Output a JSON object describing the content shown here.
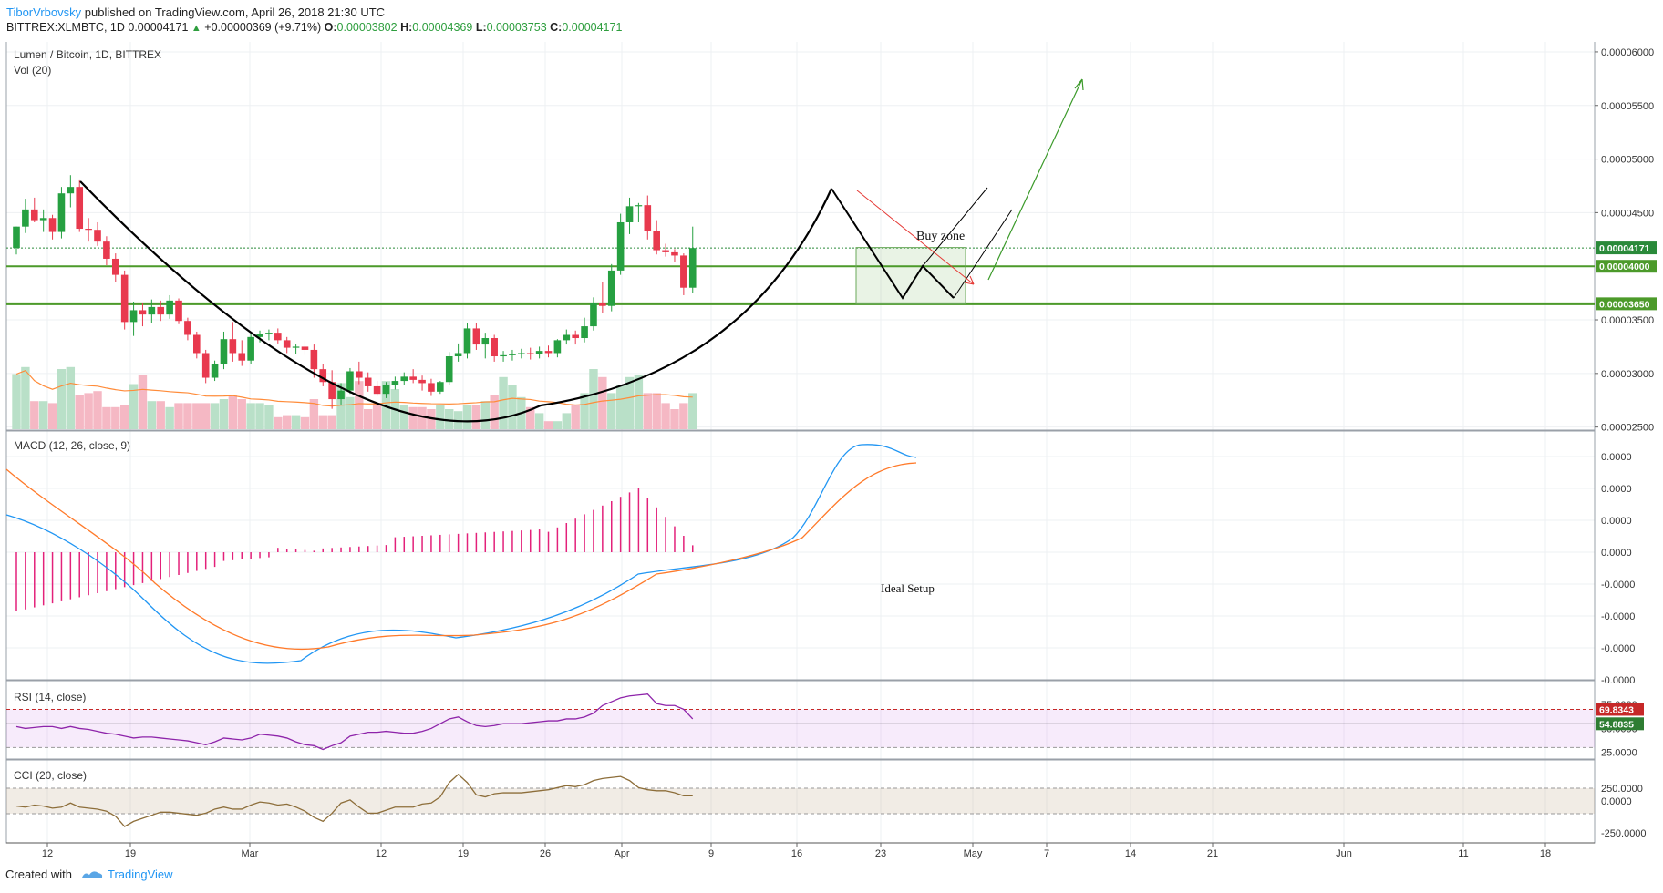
{
  "header": {
    "author": "TiborVrbovsky",
    "published": "published on TradingView.com, April 26, 2018 21:30 UTC",
    "symbol": "BITTREX:XLMBTC, 1D",
    "last": "0.00004171",
    "change": "+0.00000369 (+9.71%)",
    "open_label": "O:",
    "open": "0.00003802",
    "high_label": "H:",
    "high": "0.00004369",
    "low_label": "L:",
    "low": "0.00003753",
    "close_label": "C:",
    "close": "0.00004171"
  },
  "footer": {
    "created_with": "Created with",
    "brand": "TradingView"
  },
  "colors": {
    "up": "#26a041",
    "down": "#e8394e",
    "up_vol": "#b9e0c8",
    "down_vol": "#f5b8c4",
    "ma": "#ff8c3a",
    "macd": "#2196f3",
    "signal": "#ff7a2a",
    "hist": "#e3217a",
    "rsi": "#8e24aa",
    "cci": "#8d6e3a",
    "pattern": "#000000",
    "target": "#3b9a2a",
    "level": "#4c9a2a",
    "downtrend": "#e53935"
  },
  "chart_data": {
    "type": "candlestick",
    "panes": {
      "price": {
        "title": "Lumen / Bitcoin, 1D, BITTREX",
        "volume_label": "Vol (20)",
        "ylim": [
          2.48e-05,
          6.11e-05
        ],
        "y_ticks": [
          "0.00006000",
          "0.00005500",
          "0.00005000",
          "0.00004500",
          "0.00003500",
          "0.00003000",
          "0.00002500"
        ],
        "ohlc": [
          [
            4.17e-05,
            4.37e-05,
            4.11e-05,
            4.37e-05
          ],
          [
            4.37e-05,
            4.63e-05,
            4.31e-05,
            4.53e-05
          ],
          [
            4.53e-05,
            4.64e-05,
            4.41e-05,
            4.43e-05
          ],
          [
            4.43e-05,
            4.53e-05,
            4.32e-05,
            4.45e-05
          ],
          [
            4.45e-05,
            4.48e-05,
            4.25e-05,
            4.32e-05
          ],
          [
            4.32e-05,
            4.74e-05,
            4.26e-05,
            4.68e-05
          ],
          [
            4.68e-05,
            4.85e-05,
            4.55e-05,
            4.74e-05
          ],
          [
            4.74e-05,
            4.81e-05,
            4.32e-05,
            4.35e-05
          ],
          [
            4.35e-05,
            4.45e-05,
            4.23e-05,
            4.34e-05
          ],
          [
            4.34e-05,
            4.41e-05,
            4.19e-05,
            4.23e-05
          ],
          [
            4.23e-05,
            4.28e-05,
            4.01e-05,
            4.07e-05
          ],
          [
            4.07e-05,
            4.12e-05,
            3.85e-05,
            3.92e-05
          ],
          [
            3.92e-05,
            3.96e-05,
            3.41e-05,
            3.48e-05
          ],
          [
            3.48e-05,
            3.67e-05,
            3.35e-05,
            3.59e-05
          ],
          [
            3.59e-05,
            3.66e-05,
            3.44e-05,
            3.55e-05
          ],
          [
            3.55e-05,
            3.69e-05,
            3.47e-05,
            3.62e-05
          ],
          [
            3.62e-05,
            3.68e-05,
            3.49e-05,
            3.55e-05
          ],
          [
            3.55e-05,
            3.73e-05,
            3.51e-05,
            3.68e-05
          ],
          [
            3.68e-05,
            3.7e-05,
            3.46e-05,
            3.49e-05
          ],
          [
            3.49e-05,
            3.52e-05,
            3.31e-05,
            3.36e-05
          ],
          [
            3.36e-05,
            3.39e-05,
            3.14e-05,
            3.19e-05
          ],
          [
            3.19e-05,
            3.22e-05,
            2.91e-05,
            2.96e-05
          ],
          [
            2.96e-05,
            3.12e-05,
            2.93e-05,
            3.09e-05
          ],
          [
            3.09e-05,
            3.39e-05,
            3.04e-05,
            3.32e-05
          ],
          [
            3.32e-05,
            3.48e-05,
            3.11e-05,
            3.19e-05
          ],
          [
            3.19e-05,
            3.31e-05,
            3.07e-05,
            3.12e-05
          ],
          [
            3.12e-05,
            3.37e-05,
            3.09e-05,
            3.34e-05
          ],
          [
            3.34e-05,
            3.4e-05,
            3.29e-05,
            3.37e-05
          ],
          [
            3.37e-05,
            3.41e-05,
            3.31e-05,
            3.38e-05
          ],
          [
            3.38e-05,
            3.42e-05,
            3.28e-05,
            3.31e-05
          ],
          [
            3.31e-05,
            3.34e-05,
            3.19e-05,
            3.24e-05
          ],
          [
            3.24e-05,
            3.27e-05,
            3.18e-05,
            3.25e-05
          ],
          [
            3.25e-05,
            3.31e-05,
            3.17e-05,
            3.22e-05
          ],
          [
            3.22e-05,
            3.27e-05,
            2.96e-05,
            3.04e-05
          ],
          [
            3.04e-05,
            3.09e-05,
            2.88e-05,
            2.92e-05
          ],
          [
            2.92e-05,
            3.03e-05,
            2.67e-05,
            2.76e-05
          ],
          [
            2.76e-05,
            2.91e-05,
            2.71e-05,
            2.84e-05
          ],
          [
            2.84e-05,
            3.05e-05,
            2.81e-05,
            3.02e-05
          ],
          [
            3.02e-05,
            3.11e-05,
            2.9e-05,
            2.96e-05
          ],
          [
            2.96e-05,
            3.01e-05,
            2.83e-05,
            2.88e-05
          ],
          [
            2.88e-05,
            2.93e-05,
            2.79e-05,
            2.81e-05
          ],
          [
            2.81e-05,
            2.92e-05,
            2.77e-05,
            2.89e-05
          ],
          [
            2.89e-05,
            2.97e-05,
            2.85e-05,
            2.93e-05
          ],
          [
            2.93e-05,
            3.01e-05,
            2.89e-05,
            2.97e-05
          ],
          [
            2.97e-05,
            3.04e-05,
            2.91e-05,
            2.94e-05
          ],
          [
            2.94e-05,
            2.98e-05,
            2.84e-05,
            2.91e-05
          ],
          [
            2.91e-05,
            2.95e-05,
            2.79e-05,
            2.83e-05
          ],
          [
            2.83e-05,
            2.93e-05,
            2.81e-05,
            2.92e-05
          ],
          [
            2.92e-05,
            3.2e-05,
            2.89e-05,
            3.16e-05
          ],
          [
            3.16e-05,
            3.28e-05,
            3.11e-05,
            3.19e-05
          ],
          [
            3.19e-05,
            3.47e-05,
            3.14e-05,
            3.42e-05
          ],
          [
            3.42e-05,
            3.47e-05,
            3.22e-05,
            3.27e-05
          ],
          [
            3.27e-05,
            3.38e-05,
            3.14e-05,
            3.33e-05
          ],
          [
            3.33e-05,
            3.36e-05,
            3.11e-05,
            3.16e-05
          ],
          [
            3.16e-05,
            3.21e-05,
            3.11e-05,
            3.17e-05
          ],
          [
            3.17e-05,
            3.22e-05,
            3.12e-05,
            3.18e-05
          ],
          [
            3.18e-05,
            3.23e-05,
            3.14e-05,
            3.19e-05
          ],
          [
            3.19e-05,
            3.24e-05,
            3.13e-05,
            3.18e-05
          ],
          [
            3.18e-05,
            3.25e-05,
            3.14e-05,
            3.21e-05
          ],
          [
            3.21e-05,
            3.26e-05,
            3.15e-05,
            3.19e-05
          ],
          [
            3.19e-05,
            3.32e-05,
            3.15e-05,
            3.31e-05
          ],
          [
            3.31e-05,
            3.41e-05,
            3.27e-05,
            3.36e-05
          ],
          [
            3.36e-05,
            3.4e-05,
            3.27e-05,
            3.33e-05
          ],
          [
            3.33e-05,
            3.52e-05,
            3.29e-05,
            3.44e-05
          ],
          [
            3.44e-05,
            3.71e-05,
            3.4e-05,
            3.66e-05
          ],
          [
            3.66e-05,
            3.85e-05,
            3.56e-05,
            3.63e-05
          ],
          [
            3.63e-05,
            4.02e-05,
            3.58e-05,
            3.96e-05
          ],
          [
            3.96e-05,
            4.49e-05,
            3.92e-05,
            4.41e-05
          ],
          [
            4.41e-05,
            4.64e-05,
            4.3e-05,
            4.56e-05
          ],
          [
            4.56e-05,
            4.59e-05,
            4.41e-05,
            4.57e-05
          ],
          [
            4.57e-05,
            4.66e-05,
            4.25e-05,
            4.33e-05
          ],
          [
            4.33e-05,
            4.43e-05,
            4.11e-05,
            4.15e-05
          ],
          [
            4.15e-05,
            4.21e-05,
            4.09e-05,
            4.13e-05
          ],
          [
            4.13e-05,
            4.16e-05,
            4.04e-05,
            4.1e-05
          ],
          [
            4.1e-05,
            4.12e-05,
            3.73e-05,
            3.8e-05
          ],
          [
            3.8e-05,
            4.37e-05,
            3.75e-05,
            4.17e-05
          ]
        ],
        "volume": [
          0.55,
          0.62,
          0.28,
          0.28,
          0.26,
          0.6,
          0.62,
          0.34,
          0.36,
          0.38,
          0.22,
          0.22,
          0.24,
          0.45,
          0.54,
          0.28,
          0.28,
          0.22,
          0.26,
          0.26,
          0.26,
          0.26,
          0.26,
          0.3,
          0.34,
          0.3,
          0.26,
          0.26,
          0.24,
          0.12,
          0.14,
          0.14,
          0.12,
          0.3,
          0.14,
          0.14,
          0.46,
          0.32,
          0.48,
          0.2,
          0.26,
          0.48,
          0.4,
          0.24,
          0.22,
          0.22,
          0.2,
          0.24,
          0.2,
          0.18,
          0.24,
          0.24,
          0.28,
          0.34,
          0.52,
          0.44,
          0.32,
          0.22,
          0.16,
          0.08,
          0.08,
          0.16,
          0.24,
          0.36,
          0.6,
          0.52,
          0.36,
          0.44,
          0.52,
          0.54,
          0.36,
          0.36,
          0.26,
          0.2,
          0.26,
          0.36
        ],
        "annotations": {
          "buy_zone": "Buy zone",
          "ideal_setup": "Ideal Setup"
        },
        "levels": [
          {
            "price": 4.171e-05,
            "label": "0.00004171"
          },
          {
            "price": 4e-05,
            "label": "0.00004000"
          },
          {
            "price": 3.65e-05,
            "label": "0.00003650"
          }
        ]
      },
      "macd": {
        "title": "MACD (12, 26, close, 9)",
        "y_ticks": [
          "0.0000",
          "0.0000",
          "0.0000",
          "0.0000",
          "-0.0000",
          "-0.0000",
          "-0.0000",
          "-0.0000"
        ]
      },
      "rsi": {
        "title": "RSI (14, close)",
        "ylim": [
          18,
          100
        ],
        "values": [
          {
            "label": "69.8343"
          },
          {
            "label": "54.8835"
          }
        ],
        "y_ticks": [
          "75.0000",
          "50.0000",
          "25.0000"
        ]
      },
      "cci": {
        "title": "CCI (20, close)",
        "y_ticks": [
          "250.0000",
          "0.0000",
          "-250.0000"
        ]
      }
    },
    "x_ticks": [
      "12",
      "19",
      "Mar",
      "12",
      "19",
      "26",
      "Apr",
      "9",
      "16",
      "23",
      "May",
      "7",
      "14",
      "21",
      "Jun",
      "11",
      "18"
    ]
  }
}
